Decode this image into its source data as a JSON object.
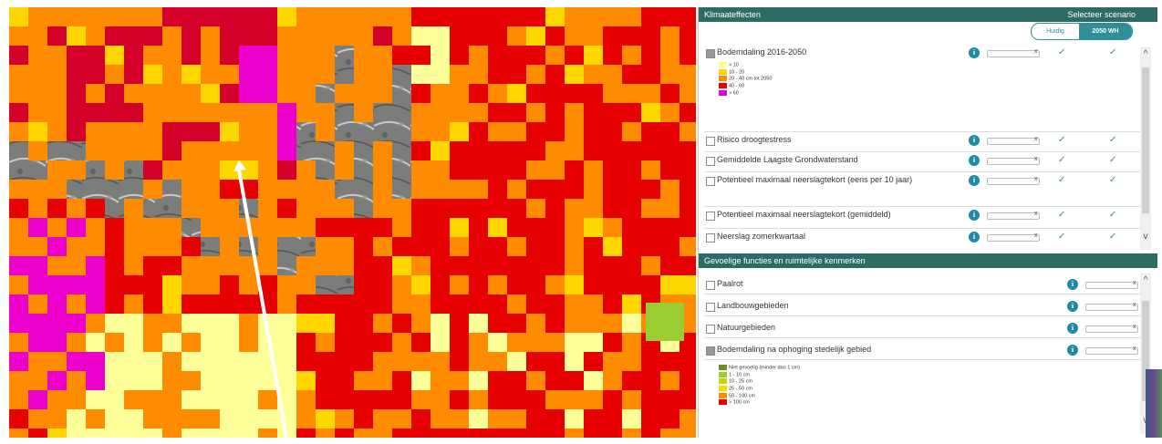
{
  "panel": {
    "climate_header": "Klimaateffecten",
    "scenario_header": "Selecteer scenario",
    "scenario_options": [
      "Huidig",
      "2050 WH"
    ],
    "climate_layers": [
      {
        "label": "Bodemdaling 2016-2050",
        "checked": true
      },
      {
        "label": "Risico droogtestress",
        "checked": false
      },
      {
        "label": "Gemiddelde Laagste Grondwaterstand",
        "checked": false
      },
      {
        "label": "Potentieel maximaal neerslagtekort (eens per 10 jaar)",
        "checked": false
      },
      {
        "label": "Potentieel maximaal neerslagtekort (gemiddeld)",
        "checked": false
      },
      {
        "label": "Neerslag zomerkwartaal",
        "checked": false
      }
    ],
    "subsidence_legend": [
      {
        "label": "> 10",
        "color": "#ffff99"
      },
      {
        "label": "10 - 20",
        "color": "#ffd700"
      },
      {
        "label": "20 - 40 cm tot 2050",
        "color": "#ff8c00"
      },
      {
        "label": "40 - 60",
        "color": "#e60000"
      },
      {
        "label": "> 60",
        "color": "#ee00cc"
      }
    ],
    "functions_header": "Gevoelige functies en ruimtelijke kenmerken",
    "function_layers": [
      {
        "label": "Paalrot",
        "checked": false
      },
      {
        "label": "Landbouwgebieden",
        "checked": false
      },
      {
        "label": "Natuurgebieden",
        "checked": false
      },
      {
        "label": "Bodemdaling na ophoging stedelijk gebied",
        "checked": true
      }
    ],
    "raise_legend": [
      {
        "label": "Niet gevoelig (minder dan 1 cm)",
        "color": "#6b8e23"
      },
      {
        "label": "1 - 10 cm",
        "color": "#9acd32"
      },
      {
        "label": "10 - 25 cm",
        "color": "#c8d400"
      },
      {
        "label": "25 - 50 cm",
        "color": "#ffd700"
      },
      {
        "label": "50 - 100 cm",
        "color": "#ff8c00"
      },
      {
        "label": "> 100 cm",
        "color": "#e60000"
      }
    ],
    "info_icon": "info-icon",
    "check_icon": "check-icon"
  },
  "map": {
    "colors": {
      "pale": "#ffff99",
      "yellow": "#ffd700",
      "orange": "#ff8c00",
      "red": "#e60000",
      "dark_red": "#d4002a",
      "magenta": "#ee00cc",
      "green": "#9acd32"
    }
  }
}
